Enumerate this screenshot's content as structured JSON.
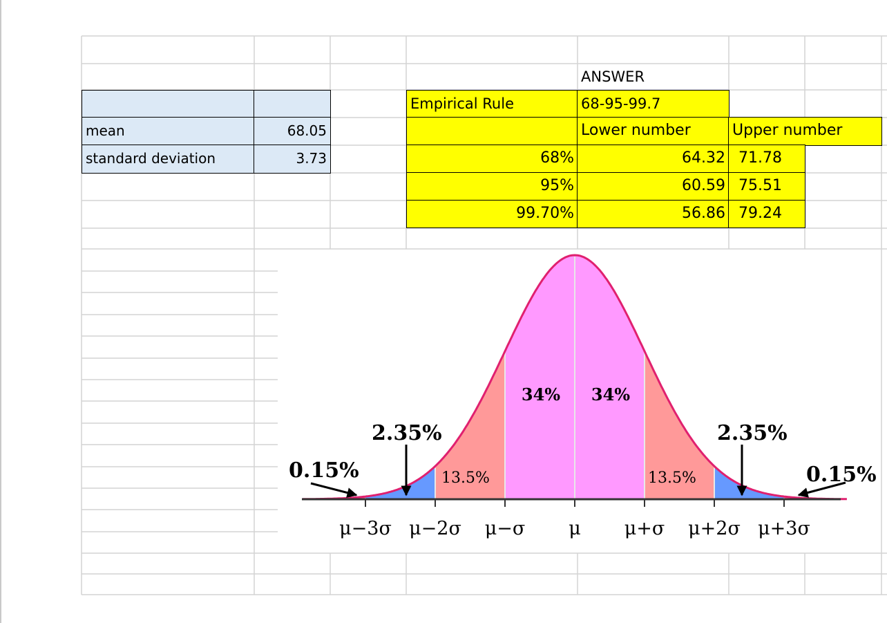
{
  "stats": {
    "mean_label": "mean",
    "mean_value": "68.05",
    "sd_label": "standard deviation",
    "sd_value": "3.73"
  },
  "answer": {
    "header": "ANSWER",
    "rule_label": "Empirical Rule",
    "rule_value": "68-95-99.7",
    "lower_header": "Lower number",
    "upper_header": "Upper number",
    "rows": [
      {
        "pct": "68%",
        "lower": "64.32",
        "upper": "71.78"
      },
      {
        "pct": "95%",
        "lower": "60.59",
        "upper": "75.51"
      },
      {
        "pct": "99.70%",
        "lower": "56.86",
        "upper": "79.24"
      }
    ]
  },
  "diagram": {
    "center_left": "34%",
    "center_right": "34%",
    "mid_left": "13.5%",
    "mid_right": "13.5%",
    "outer_left": "2.35%",
    "outer_right": "2.35%",
    "tail_left": "0.15%",
    "tail_right": "0.15%",
    "ticks": [
      "μ−3σ",
      "μ−2σ",
      "μ−σ",
      "μ",
      "μ+σ",
      "μ+2σ",
      "μ+3σ"
    ],
    "colors": {
      "center": "#ff99ff",
      "mid": "#ff9999",
      "outer": "#6699ff",
      "tail": "#ff6699",
      "curve": "#e0206f"
    }
  }
}
